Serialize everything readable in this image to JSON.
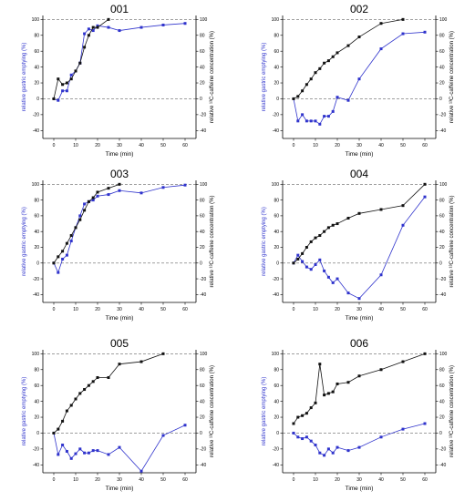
{
  "colors": {
    "emptying": "#2f33cc",
    "caffeine": "#111111",
    "axes": "#000000",
    "reference": "#666666"
  },
  "chart_data": [
    {
      "type": "line",
      "title": "001",
      "xlabel": "Time (min)",
      "ylabel_left": "relative gastric emptying (%)",
      "ylabel_right": "relative ¹³C-caffeine concentration (%)",
      "xlim": [
        -5,
        65
      ],
      "ylim_left": [
        -50,
        105
      ],
      "ylim_right": [
        -50,
        105
      ],
      "xticks": [
        0,
        10,
        20,
        30,
        40,
        50,
        60
      ],
      "yticks": [
        -40,
        -20,
        0,
        20,
        40,
        60,
        80,
        100
      ],
      "reference_lines": [
        0,
        100
      ],
      "series": [
        {
          "axis": "left",
          "color_key": "emptying",
          "x": [
            0,
            2,
            4,
            6,
            8,
            10,
            12,
            14,
            16,
            18,
            20,
            25,
            30,
            40,
            50,
            60
          ],
          "y": [
            0,
            -2,
            10,
            10,
            30,
            35,
            45,
            82,
            88,
            86,
            92,
            90,
            86,
            90,
            93,
            95
          ]
        },
        {
          "axis": "right",
          "color_key": "caffeine",
          "x": [
            0,
            2,
            4,
            6,
            8,
            10,
            12,
            14,
            16,
            18,
            20,
            25
          ],
          "y": [
            0,
            25,
            18,
            20,
            25,
            35,
            45,
            65,
            80,
            90,
            90,
            100
          ]
        }
      ]
    },
    {
      "type": "line",
      "title": "002",
      "xlabel": "Time (min)",
      "ylabel_left": "relative gastric emptying (%)",
      "ylabel_right": "relative ¹³C-caffeine concentration (%)",
      "xlim": [
        -5,
        65
      ],
      "ylim_left": [
        -50,
        105
      ],
      "ylim_right": [
        -50,
        105
      ],
      "xticks": [
        0,
        10,
        20,
        30,
        40,
        50,
        60
      ],
      "yticks": [
        -40,
        -20,
        0,
        20,
        40,
        60,
        80,
        100
      ],
      "reference_lines": [
        0,
        100
      ],
      "series": [
        {
          "axis": "left",
          "color_key": "emptying",
          "x": [
            0,
            2,
            4,
            6,
            8,
            10,
            12,
            14,
            16,
            18,
            20,
            25,
            30,
            40,
            50,
            60
          ],
          "y": [
            0,
            -28,
            -20,
            -28,
            -28,
            -28,
            -32,
            -22,
            -22,
            -16,
            2,
            -2,
            25,
            63,
            82,
            84
          ]
        },
        {
          "axis": "right",
          "color_key": "caffeine",
          "x": [
            0,
            2,
            4,
            6,
            8,
            10,
            12,
            14,
            16,
            18,
            20,
            25,
            30,
            40,
            50
          ],
          "y": [
            0,
            3,
            10,
            18,
            25,
            33,
            38,
            45,
            48,
            53,
            58,
            67,
            78,
            95,
            100
          ]
        }
      ]
    },
    {
      "type": "line",
      "title": "003",
      "xlabel": "Time (min)",
      "ylabel_left": "relative gastric emptying (%)",
      "ylabel_right": "relative ¹³C-caffeine concentration (%)",
      "xlim": [
        -5,
        65
      ],
      "ylim_left": [
        -50,
        105
      ],
      "ylim_right": [
        -50,
        105
      ],
      "xticks": [
        0,
        10,
        20,
        30,
        40,
        50,
        60
      ],
      "yticks": [
        -40,
        -20,
        0,
        20,
        40,
        60,
        80,
        100
      ],
      "reference_lines": [
        0,
        100
      ],
      "series": [
        {
          "axis": "left",
          "color_key": "emptying",
          "x": [
            0,
            2,
            4,
            6,
            8,
            10,
            12,
            14,
            16,
            18,
            20,
            25,
            30,
            40,
            50,
            60
          ],
          "y": [
            0,
            -12,
            5,
            10,
            28,
            45,
            60,
            75,
            78,
            80,
            85,
            87,
            92,
            89,
            96,
            99
          ]
        },
        {
          "axis": "right",
          "color_key": "caffeine",
          "x": [
            0,
            2,
            4,
            6,
            8,
            10,
            12,
            14,
            16,
            18,
            20,
            25,
            30
          ],
          "y": [
            0,
            8,
            15,
            25,
            35,
            45,
            55,
            67,
            78,
            83,
            90,
            95,
            100
          ]
        }
      ]
    },
    {
      "type": "line",
      "title": "004",
      "xlabel": "Time (min)",
      "ylabel_left": "relative gastric emptying (%)",
      "ylabel_right": "relative ¹³C-caffeine concentration (%)",
      "xlim": [
        -5,
        65
      ],
      "ylim_left": [
        -50,
        105
      ],
      "ylim_right": [
        -50,
        105
      ],
      "xticks": [
        0,
        10,
        20,
        30,
        40,
        50,
        60
      ],
      "yticks": [
        -40,
        -20,
        0,
        20,
        40,
        60,
        80,
        100
      ],
      "reference_lines": [
        0,
        100
      ],
      "series": [
        {
          "axis": "left",
          "color_key": "emptying",
          "x": [
            0,
            2,
            4,
            6,
            8,
            10,
            12,
            14,
            16,
            18,
            20,
            25,
            30,
            40,
            50,
            60
          ],
          "y": [
            0,
            10,
            2,
            -5,
            -8,
            -2,
            4,
            -10,
            -18,
            -25,
            -20,
            -38,
            -45,
            -15,
            48,
            84
          ]
        },
        {
          "axis": "right",
          "color_key": "caffeine",
          "x": [
            0,
            2,
            4,
            6,
            8,
            10,
            12,
            14,
            16,
            18,
            20,
            25,
            30,
            40,
            50,
            60
          ],
          "y": [
            0,
            5,
            12,
            20,
            27,
            32,
            35,
            40,
            45,
            48,
            50,
            57,
            63,
            68,
            73,
            100
          ]
        }
      ]
    },
    {
      "type": "line",
      "title": "005",
      "xlabel": "Time (min)",
      "ylabel_left": "relative gastric emptying (%)",
      "ylabel_right": "relative ¹³C-caffeine concentration (%)",
      "xlim": [
        -5,
        65
      ],
      "ylim_left": [
        -50,
        105
      ],
      "ylim_right": [
        -50,
        105
      ],
      "xticks": [
        0,
        10,
        20,
        30,
        40,
        50,
        60
      ],
      "yticks": [
        -40,
        -20,
        0,
        20,
        40,
        60,
        80,
        100
      ],
      "reference_lines": [
        0,
        100
      ],
      "series": [
        {
          "axis": "left",
          "color_key": "emptying",
          "x": [
            0,
            2,
            4,
            6,
            8,
            10,
            12,
            14,
            16,
            18,
            20,
            25,
            30,
            40,
            50,
            60
          ],
          "y": [
            0,
            -27,
            -15,
            -23,
            -32,
            -26,
            -20,
            -25,
            -25,
            -22,
            -22,
            -27,
            -18,
            -48,
            -3,
            10
          ]
        },
        {
          "axis": "right",
          "color_key": "caffeine",
          "x": [
            0,
            2,
            4,
            6,
            8,
            10,
            12,
            14,
            16,
            18,
            20,
            25,
            30,
            40,
            50
          ],
          "y": [
            0,
            5,
            15,
            28,
            35,
            43,
            50,
            55,
            60,
            65,
            70,
            70,
            87,
            90,
            100
          ]
        }
      ]
    },
    {
      "type": "line",
      "title": "006",
      "xlabel": "Time (min)",
      "ylabel_left": "relative gastric emptying (%)",
      "ylabel_right": "relative ¹³C-caffeine concentration (%)",
      "xlim": [
        -5,
        65
      ],
      "ylim_left": [
        -50,
        105
      ],
      "ylim_right": [
        -50,
        105
      ],
      "xticks": [
        0,
        10,
        20,
        30,
        40,
        50,
        60
      ],
      "yticks": [
        -40,
        -20,
        0,
        20,
        40,
        60,
        80,
        100
      ],
      "reference_lines": [
        0,
        100
      ],
      "series": [
        {
          "axis": "left",
          "color_key": "emptying",
          "x": [
            0,
            2,
            4,
            6,
            8,
            10,
            12,
            14,
            16,
            18,
            20,
            25,
            30,
            40,
            50,
            60
          ],
          "y": [
            0,
            -5,
            -7,
            -5,
            -10,
            -15,
            -25,
            -28,
            -20,
            -25,
            -18,
            -22,
            -18,
            -5,
            5,
            12
          ]
        },
        {
          "axis": "right",
          "color_key": "caffeine",
          "x": [
            0,
            2,
            4,
            6,
            8,
            10,
            12,
            14,
            16,
            18,
            20,
            25,
            30,
            40,
            50,
            60
          ],
          "y": [
            12,
            20,
            22,
            25,
            32,
            38,
            87,
            48,
            50,
            52,
            62,
            64,
            72,
            80,
            90,
            100
          ]
        }
      ]
    }
  ]
}
